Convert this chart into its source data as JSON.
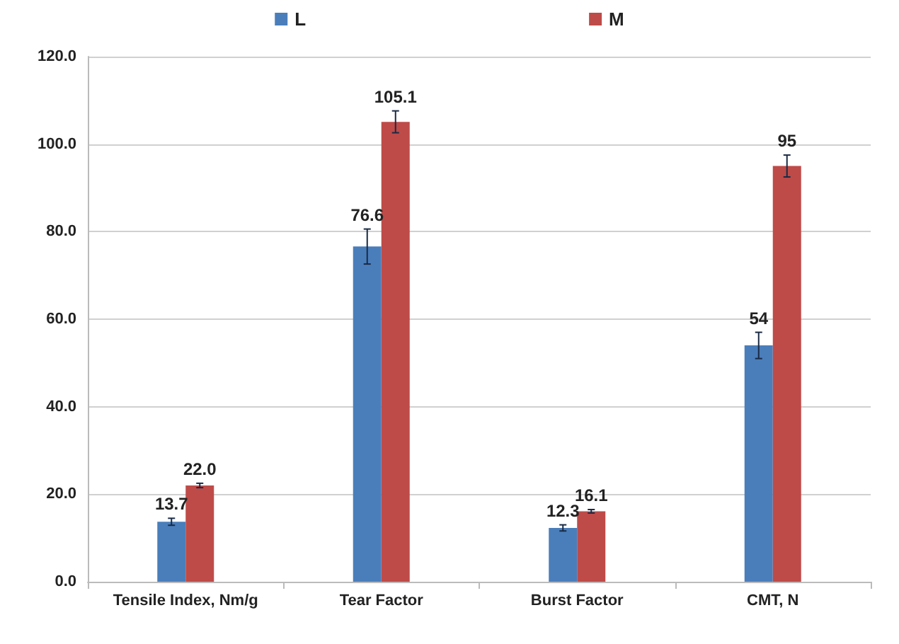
{
  "chart_data": {
    "type": "bar",
    "categories": [
      "Tensile Index, Nm/g",
      "Tear Factor",
      "Burst Factor",
      "CMT, N"
    ],
    "series": [
      {
        "name": "L",
        "color": "#4a7ebb",
        "values": [
          13.7,
          76.6,
          12.3,
          54
        ],
        "value_labels": [
          "13.7",
          "76.6",
          "12.3",
          "54"
        ],
        "errors": [
          0.8,
          4,
          0.7,
          3
        ]
      },
      {
        "name": "M",
        "color": "#be4b48",
        "values": [
          22.0,
          105.1,
          16.1,
          95
        ],
        "value_labels": [
          "22.0",
          "105.1",
          "16.1",
          "95"
        ],
        "errors": [
          0.5,
          2.5,
          0.4,
          2.5
        ]
      }
    ],
    "ylim": [
      0,
      120
    ],
    "yticks": [
      {
        "value": 0,
        "label": "0.0"
      },
      {
        "value": 20,
        "label": "20.0"
      },
      {
        "value": 40,
        "label": "40.0"
      },
      {
        "value": 60,
        "label": "60.0"
      },
      {
        "value": 80,
        "label": "80.0"
      },
      {
        "value": 100,
        "label": "100.0"
      },
      {
        "value": 120,
        "label": "120.0"
      }
    ],
    "grid": "y",
    "legend": "top"
  }
}
